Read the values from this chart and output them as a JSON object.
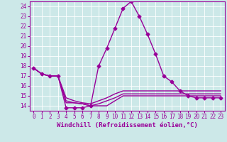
{
  "background_color": "#cce8e8",
  "line_color": "#990099",
  "marker": "D",
  "markersize": 2.5,
  "linewidth": 1.0,
  "xlabel": "Windchill (Refroidissement éolien,°C)",
  "xlabel_fontsize": 6.5,
  "tick_fontsize": 5.5,
  "xlim": [
    -0.5,
    23.5
  ],
  "ylim": [
    13.5,
    24.5
  ],
  "yticks": [
    14,
    15,
    16,
    17,
    18,
    19,
    20,
    21,
    22,
    23,
    24
  ],
  "xticks": [
    0,
    1,
    2,
    3,
    4,
    5,
    6,
    7,
    8,
    9,
    10,
    11,
    12,
    13,
    14,
    15,
    16,
    17,
    18,
    19,
    20,
    21,
    22,
    23
  ],
  "series": [
    {
      "x": [
        0,
        1,
        2,
        3,
        4,
        5,
        6,
        7,
        8,
        9,
        10,
        11,
        12,
        13,
        14,
        15,
        16,
        17,
        18,
        19,
        20,
        21,
        22,
        23
      ],
      "y": [
        17.8,
        17.2,
        17.0,
        17.0,
        13.8,
        13.8,
        13.8,
        14.0,
        18.0,
        19.8,
        21.8,
        23.8,
        24.5,
        23.0,
        21.2,
        19.2,
        17.0,
        16.4,
        15.5,
        15.0,
        14.8,
        14.8,
        14.8,
        14.8
      ],
      "has_markers": true
    },
    {
      "x": [
        0,
        1,
        2,
        3,
        4,
        5,
        6,
        7,
        8,
        9,
        10,
        11,
        12,
        13,
        14,
        15,
        16,
        17,
        18,
        19,
        20,
        21,
        22,
        23
      ],
      "y": [
        17.8,
        17.2,
        17.0,
        17.0,
        14.3,
        14.3,
        14.2,
        14.0,
        14.0,
        14.0,
        14.5,
        15.0,
        15.0,
        15.0,
        15.0,
        15.0,
        15.0,
        15.0,
        15.0,
        15.0,
        15.0,
        15.0,
        15.0,
        15.0
      ],
      "has_markers": false
    },
    {
      "x": [
        0,
        1,
        2,
        3,
        4,
        5,
        6,
        7,
        8,
        9,
        10,
        11,
        12,
        13,
        14,
        15,
        16,
        17,
        18,
        19,
        20,
        21,
        22,
        23
      ],
      "y": [
        17.8,
        17.2,
        17.0,
        17.0,
        14.5,
        14.3,
        14.2,
        14.0,
        14.2,
        14.5,
        14.8,
        15.2,
        15.2,
        15.2,
        15.2,
        15.2,
        15.2,
        15.2,
        15.2,
        15.2,
        15.2,
        15.2,
        15.2,
        15.2
      ],
      "has_markers": false
    },
    {
      "x": [
        0,
        1,
        2,
        3,
        4,
        5,
        6,
        7,
        8,
        9,
        10,
        11,
        12,
        13,
        14,
        15,
        16,
        17,
        18,
        19,
        20,
        21,
        22,
        23
      ],
      "y": [
        17.8,
        17.2,
        17.0,
        17.0,
        14.8,
        14.5,
        14.3,
        14.2,
        14.5,
        14.8,
        15.2,
        15.5,
        15.5,
        15.5,
        15.5,
        15.5,
        15.5,
        15.5,
        15.5,
        15.5,
        15.5,
        15.5,
        15.5,
        15.5
      ],
      "has_markers": false
    }
  ]
}
